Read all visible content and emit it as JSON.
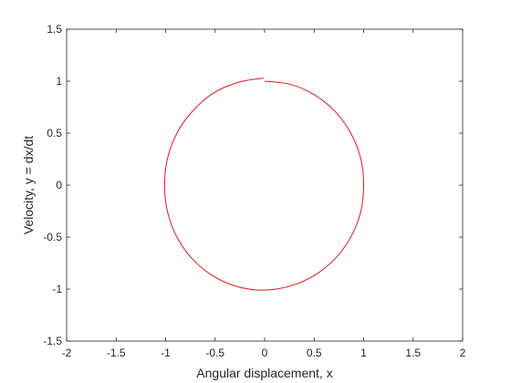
{
  "chart_data": {
    "type": "line",
    "title": "",
    "xlabel": "Angular displacement, x",
    "ylabel": "Velocity, y = dx/dt",
    "xlim": [
      -2,
      2
    ],
    "ylim": [
      -1.5,
      1.5
    ],
    "xticks": [
      -2,
      -1.5,
      -1,
      -0.5,
      0,
      0.5,
      1,
      1.5,
      2
    ],
    "yticks": [
      -1.5,
      -1,
      -0.5,
      0,
      0.5,
      1,
      1.5
    ],
    "xtick_labels": [
      "-2",
      "-1.5",
      "-1",
      "-0.5",
      "0",
      "0.5",
      "1",
      "1.5",
      "2"
    ],
    "ytick_labels": [
      "-1.5",
      "-1",
      "-0.5",
      "0",
      "0.5",
      "1",
      "1.5"
    ],
    "grid": false,
    "series": [
      {
        "color": "#e41a1c",
        "points": [
          [
            0.0,
            1.0
          ],
          [
            0.26,
            0.97
          ],
          [
            0.5,
            0.87
          ],
          [
            0.71,
            0.71
          ],
          [
            0.87,
            0.5
          ],
          [
            0.97,
            0.26
          ],
          [
            1.0,
            0.0
          ],
          [
            0.97,
            -0.26
          ],
          [
            0.87,
            -0.5
          ],
          [
            0.71,
            -0.71
          ],
          [
            0.5,
            -0.87
          ],
          [
            0.26,
            -0.97
          ],
          [
            0.0,
            -1.01
          ],
          [
            -0.26,
            -0.98
          ],
          [
            -0.51,
            -0.88
          ],
          [
            -0.72,
            -0.72
          ],
          [
            -0.88,
            -0.51
          ],
          [
            -0.98,
            -0.26
          ],
          [
            -1.01,
            0.0
          ],
          [
            -0.98,
            0.26
          ],
          [
            -0.88,
            0.51
          ],
          [
            -0.72,
            0.72
          ],
          [
            -0.51,
            0.89
          ],
          [
            -0.26,
            0.99
          ],
          [
            -0.01,
            1.03
          ]
        ]
      }
    ]
  }
}
